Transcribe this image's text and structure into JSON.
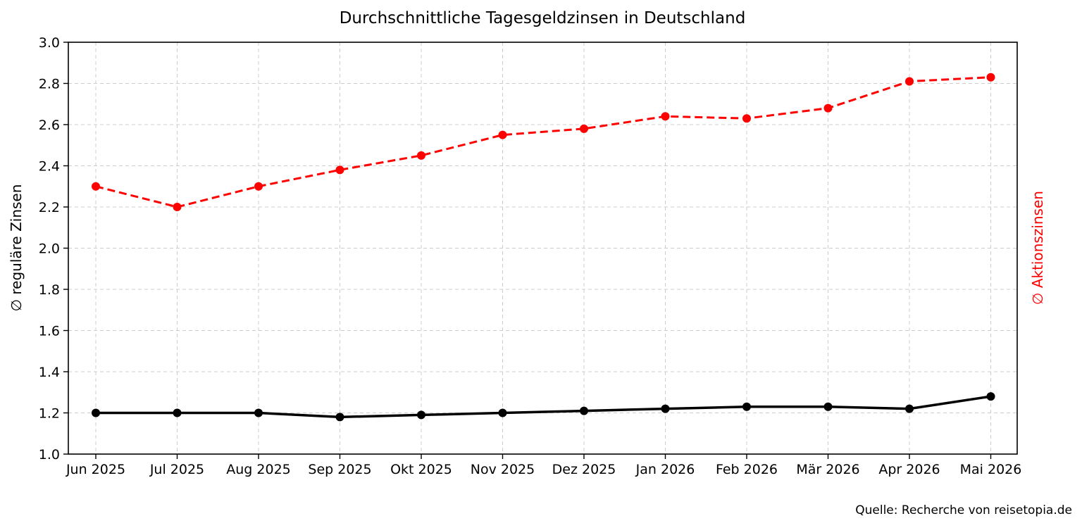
{
  "chart_data": {
    "type": "line",
    "title": "Durchschnittliche Tagesgeldzinsen in Deutschland",
    "ylabel_left": "∅ reguläre Zinsen",
    "ylabel_right": "∅ Aktionszinsen",
    "source": "Quelle: Recherche von reisetopia.de",
    "categories": [
      "Jun 2025",
      "Jul 2025",
      "Aug 2025",
      "Sep 2025",
      "Okt 2025",
      "Nov 2025",
      "Dez 2025",
      "Jan 2026",
      "Feb 2026",
      "Mär 2026",
      "Apr 2026",
      "Mai 2026"
    ],
    "ylim": [
      1.0,
      3.0
    ],
    "yticks": [
      "1.0",
      "1.2",
      "1.4",
      "1.6",
      "1.8",
      "2.0",
      "2.2",
      "2.4",
      "2.6",
      "2.8",
      "3.0"
    ],
    "grid": true,
    "series": [
      {
        "key": "regular",
        "values": [
          1.2,
          1.2,
          1.2,
          1.18,
          1.19,
          1.2,
          1.21,
          1.22,
          1.23,
          1.23,
          1.22,
          1.28
        ],
        "color": "#000000",
        "style": "solid"
      },
      {
        "key": "promo",
        "values": [
          2.3,
          2.2,
          2.3,
          2.38,
          2.45,
          2.55,
          2.58,
          2.64,
          2.63,
          2.68,
          2.81,
          2.83
        ],
        "color": "#ff0000",
        "style": "dashed"
      }
    ]
  }
}
